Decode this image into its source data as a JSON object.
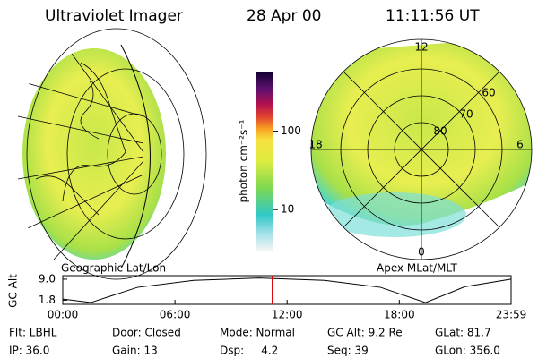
{
  "header": {
    "title": "Ultraviolet Imager",
    "date": "28 Apr 00",
    "time": "11:11:56 UT"
  },
  "geo_panel": {
    "label": "Geographic Lat/Lon"
  },
  "polar_panel": {
    "label": "Apex MLat/MLT",
    "mlt_labels": [
      "12",
      "18",
      "6",
      "0"
    ],
    "lat_labels": [
      "60",
      "70",
      "80"
    ]
  },
  "colorbar": {
    "label": "photon cm⁻²s⁻¹",
    "log_scale": true,
    "ylim": [
      3,
      575
    ],
    "yticks": [
      10,
      100
    ]
  },
  "altitude": {
    "type": "line",
    "y_label": "GC Alt",
    "color": "#000000",
    "marker_color": "#dd0000",
    "x": [
      0,
      1.5,
      4,
      7,
      10.5,
      14,
      17,
      19.4,
      21.5,
      23.98
    ],
    "values": [
      2.2,
      1.0,
      6.2,
      8.6,
      9.4,
      8.6,
      6.2,
      1.0,
      6.4,
      9.0
    ],
    "current_time": 11.2,
    "xlim": [
      0,
      23.98
    ],
    "ylim": [
      0.4,
      10.2
    ],
    "xticks": [
      {
        "value": 0,
        "label": "00:00"
      },
      {
        "value": 6,
        "label": "06:00"
      },
      {
        "value": 12,
        "label": "12:00"
      },
      {
        "value": 18,
        "label": "18:00"
      },
      {
        "value": 23.98,
        "label": "23:59"
      }
    ],
    "yticks": [
      {
        "value": 9.0,
        "label": "9.0"
      },
      {
        "value": 1.8,
        "label": "1.8"
      }
    ]
  },
  "footer": {
    "rows": [
      [
        "Flt: LBHL",
        "Door: Closed",
        "Mode: Normal",
        "GC Alt: 9.2 Re",
        "GLat: 81.7"
      ],
      [
        "IP: 36.0",
        "Gain: 13",
        "Dsp:     4.2",
        "Seq: 39",
        "GLon: 356.0"
      ]
    ]
  }
}
